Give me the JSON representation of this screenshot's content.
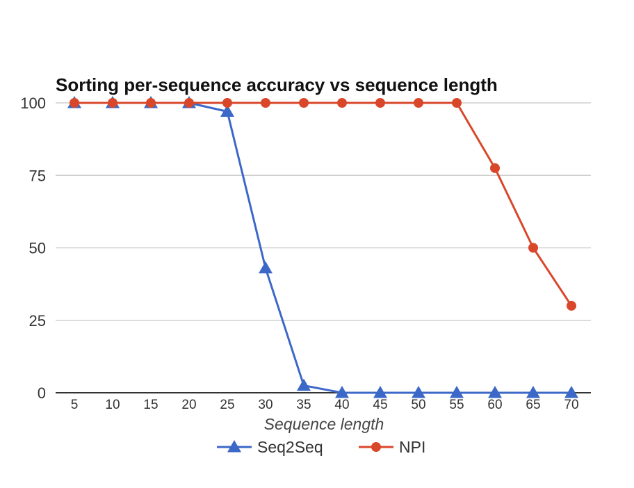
{
  "chart_data": {
    "type": "line",
    "title": "Sorting per-sequence accuracy vs sequence length",
    "xlabel": "Sequence length",
    "ylabel": "",
    "x": [
      5,
      10,
      15,
      20,
      25,
      30,
      35,
      40,
      45,
      50,
      55,
      60,
      65,
      70
    ],
    "x_tick_labels": [
      "5",
      "10",
      "15",
      "20",
      "25",
      "30",
      "35",
      "40",
      "45",
      "50",
      "55",
      "60",
      "65",
      "70"
    ],
    "ylim": [
      0,
      100
    ],
    "y_ticks": [
      0,
      25,
      50,
      75,
      100
    ],
    "y_tick_labels": [
      "0",
      "25",
      "50",
      "75",
      "100"
    ],
    "grid": true,
    "legend_position": "bottom",
    "series": [
      {
        "name": "Seq2Seq",
        "color": "#3c68c8",
        "marker": "triangle",
        "values": [
          100,
          100,
          100,
          100,
          97,
          43,
          2.5,
          0,
          0,
          0,
          0,
          0,
          0,
          0
        ]
      },
      {
        "name": "NPI",
        "color": "#d9472b",
        "marker": "circle",
        "values": [
          100,
          100,
          100,
          100,
          100,
          100,
          100,
          100,
          100,
          100,
          100,
          77.5,
          50,
          30
        ]
      }
    ]
  }
}
